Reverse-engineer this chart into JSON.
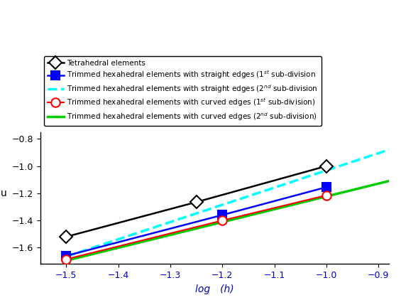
{
  "title": "",
  "xlabel": "log  (h)",
  "ylabel": "u",
  "xlim": [
    -1.55,
    -0.88
  ],
  "ylim": [
    -1.72,
    -0.75
  ],
  "xticks": [
    -1.5,
    -1.4,
    -1.3,
    -1.2,
    -1.1,
    -1.0,
    -0.9
  ],
  "yticks": [
    -1.6,
    -1.4,
    -1.2,
    -1.0,
    -0.8
  ],
  "series": [
    {
      "label": "Tetrahedral elements",
      "x": [
        -1.5,
        -1.25,
        -1.0
      ],
      "y": [
        -1.52,
        -1.265,
        -1.0
      ],
      "color": "#000000",
      "linestyle": "-",
      "linewidth": 1.8,
      "marker": "D",
      "markersize": 9,
      "markerfacecolor": "white",
      "markeredgecolor": "#000000",
      "markeredgewidth": 1.5,
      "zorder": 5
    },
    {
      "label": "Trimmed hexahedral elements with straight edges (1$^{st}$ sub-division",
      "x": [
        -1.5,
        -1.2,
        -1.0
      ],
      "y": [
        -1.66,
        -1.36,
        -1.155
      ],
      "color": "#0000FF",
      "linestyle": "-",
      "linewidth": 1.8,
      "marker": "s",
      "markersize": 8,
      "markerfacecolor": "#0000FF",
      "markeredgecolor": "#0000FF",
      "markeredgewidth": 1.5,
      "zorder": 6
    },
    {
      "label": "Trimmed hexahedral elements with straight edges (2$^{nd}$ sub-division",
      "x": [
        -1.5,
        -0.88
      ],
      "y": [
        -1.665,
        -0.88
      ],
      "color": "#00FFFF",
      "linestyle": "--",
      "linewidth": 2.5,
      "marker": "none",
      "markersize": 0,
      "zorder": 4
    },
    {
      "label": "Trimmed hexahedral elements with curved edges (1$^{st}$ sub-division)",
      "x": [
        -1.5,
        -1.2,
        -1.0
      ],
      "y": [
        -1.685,
        -1.4,
        -1.215
      ],
      "color": "#FF0000",
      "linestyle": "-",
      "linewidth": 1.5,
      "marker": "o",
      "markersize": 9,
      "markerfacecolor": "white",
      "markeredgecolor": "#FF0000",
      "markeredgewidth": 1.5,
      "zorder": 6
    },
    {
      "label": "Trimmed hexahedral elements with curved edges (2$^{nd}$ sub-division)",
      "x": [
        -1.5,
        -0.88
      ],
      "y": [
        -1.695,
        -1.11
      ],
      "color": "#00CC00",
      "linestyle": "-",
      "linewidth": 2.5,
      "marker": "none",
      "markersize": 0,
      "zorder": 3
    }
  ],
  "legend_fontsize": 7.5,
  "tick_fontsize": 9,
  "label_fontsize": 10,
  "xlabel_color": "#0000CC",
  "background_color": "#FFFFFF"
}
